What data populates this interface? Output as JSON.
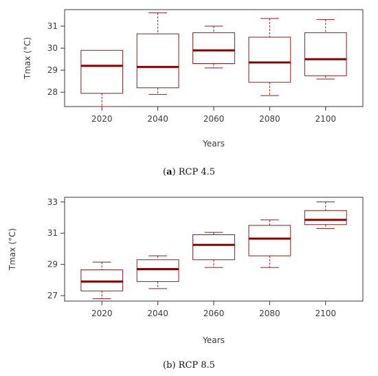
{
  "captions": [
    {
      "letter": "a",
      "text": "RCP 4.5"
    },
    {
      "letter": "b",
      "text": "RCP 8.5"
    }
  ],
  "colors": {
    "box": "#8b1a1a",
    "median": "#8b0000",
    "frame": "#333333"
  },
  "chart_data": [
    {
      "type": "box",
      "xlabel": "Years",
      "ylabel": "Tmax (°C)",
      "categories": [
        "2020",
        "2040",
        "2060",
        "2080",
        "2100"
      ],
      "ylim": [
        27.35,
        31.75
      ],
      "yticks": [
        28,
        29,
        30,
        31
      ],
      "boxes": [
        {
          "min": 27.35,
          "q1": 27.95,
          "median": 29.2,
          "q3": 29.9,
          "max": 29.9
        },
        {
          "min": 27.9,
          "q1": 28.2,
          "median": 29.15,
          "q3": 30.65,
          "max": 31.6
        },
        {
          "min": 29.1,
          "q1": 29.3,
          "median": 29.9,
          "q3": 30.7,
          "max": 31.0
        },
        {
          "min": 27.85,
          "q1": 28.45,
          "median": 29.35,
          "q3": 30.5,
          "max": 31.35
        },
        {
          "min": 28.6,
          "q1": 28.75,
          "median": 29.5,
          "q3": 30.7,
          "max": 31.3
        }
      ]
    },
    {
      "type": "box",
      "xlabel": "Years",
      "ylabel": "Tmax (°C)",
      "categories": [
        "2020",
        "2040",
        "2060",
        "2080",
        "2100"
      ],
      "ylim": [
        26.65,
        33.3
      ],
      "yticks": [
        27,
        29,
        31,
        33
      ],
      "boxes": [
        {
          "min": 26.8,
          "q1": 27.3,
          "median": 27.9,
          "q3": 28.65,
          "max": 29.15
        },
        {
          "min": 27.45,
          "q1": 27.9,
          "median": 28.7,
          "q3": 29.3,
          "max": 29.55
        },
        {
          "min": 28.8,
          "q1": 29.3,
          "median": 30.25,
          "q3": 30.9,
          "max": 31.05
        },
        {
          "min": 28.8,
          "q1": 29.55,
          "median": 30.65,
          "q3": 31.5,
          "max": 31.85
        },
        {
          "min": 31.3,
          "q1": 31.55,
          "median": 31.85,
          "q3": 32.45,
          "max": 33.0
        }
      ]
    }
  ]
}
